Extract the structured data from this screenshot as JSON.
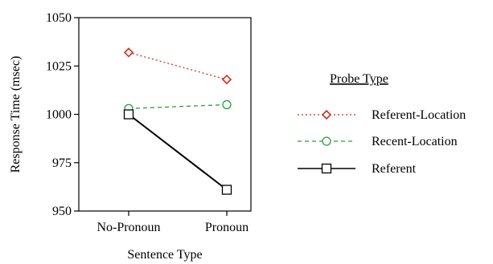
{
  "chart_data": {
    "type": "line",
    "categories": [
      "No-Pronoun",
      "Pronoun"
    ],
    "series": [
      {
        "name": "Referent-Location",
        "values": [
          1032,
          1018
        ],
        "color": "#d0301e",
        "dash": "dotted",
        "marker": "diamond"
      },
      {
        "name": "Recent-Location",
        "values": [
          1003,
          1005
        ],
        "color": "#2a9d3c",
        "dash": "dashed",
        "marker": "circle"
      },
      {
        "name": "Referent",
        "values": [
          1000,
          961
        ],
        "color": "#000000",
        "dash": "solid",
        "marker": "square"
      }
    ],
    "xlabel": "Sentence Type",
    "ylabel": "Response Time (msec)",
    "ylim": [
      950,
      1050
    ],
    "yticks": [
      "950",
      "975",
      "1000",
      "1025",
      "1050"
    ],
    "legend_title": "Probe Type",
    "legend_position": "right",
    "grid": false
  }
}
